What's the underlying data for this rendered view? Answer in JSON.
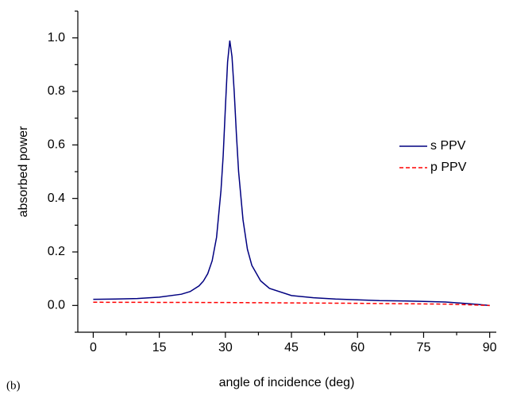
{
  "chart_data": {
    "type": "line",
    "panel_label": "(b)",
    "xlabel": "angle of incidence (deg)",
    "ylabel": "absorbed power",
    "xlim": [
      -3.5,
      91.5
    ],
    "ylim": [
      -0.1,
      1.1
    ],
    "xticks": [
      0,
      15,
      30,
      45,
      60,
      75,
      90
    ],
    "xminorticks": [
      7.5,
      22.5,
      37.5,
      52.5,
      67.5,
      82.5
    ],
    "yticks": [
      {
        "value": 0,
        "label": "0.0"
      },
      {
        "value": 0.2,
        "label": "0.2"
      },
      {
        "value": 0.4,
        "label": "0.4"
      },
      {
        "value": 0.6,
        "label": "0.6"
      },
      {
        "value": 0.8,
        "label": "0.8"
      },
      {
        "value": 1,
        "label": "1.0"
      }
    ],
    "yminorticks": [
      -0.1,
      0.1,
      0.3,
      0.5,
      0.7,
      0.9,
      1.1
    ],
    "legend": "right",
    "series": [
      {
        "name": "s PPV",
        "color": "#000080",
        "dash": false,
        "x": [
          0,
          5,
          10,
          15,
          20,
          22,
          24,
          25,
          26,
          27,
          28,
          29,
          29.5,
          30,
          30.5,
          31,
          31.5,
          32,
          32.5,
          33,
          34,
          35,
          36,
          38,
          40,
          45,
          50,
          55,
          60,
          65,
          70,
          75,
          80,
          85,
          88,
          90
        ],
        "values": [
          0.023,
          0.024,
          0.026,
          0.031,
          0.042,
          0.052,
          0.073,
          0.091,
          0.119,
          0.167,
          0.255,
          0.43,
          0.56,
          0.74,
          0.91,
          0.99,
          0.93,
          0.8,
          0.64,
          0.5,
          0.32,
          0.21,
          0.15,
          0.092,
          0.064,
          0.037,
          0.029,
          0.024,
          0.021,
          0.018,
          0.017,
          0.015,
          0.013,
          0.007,
          0.003,
          0
        ]
      },
      {
        "name": "p PPV",
        "color": "#ff0000",
        "dash": true,
        "x": [
          0,
          30,
          60,
          80,
          90
        ],
        "values": [
          0.012,
          0.011,
          0.008,
          0.005,
          0
        ]
      }
    ]
  }
}
